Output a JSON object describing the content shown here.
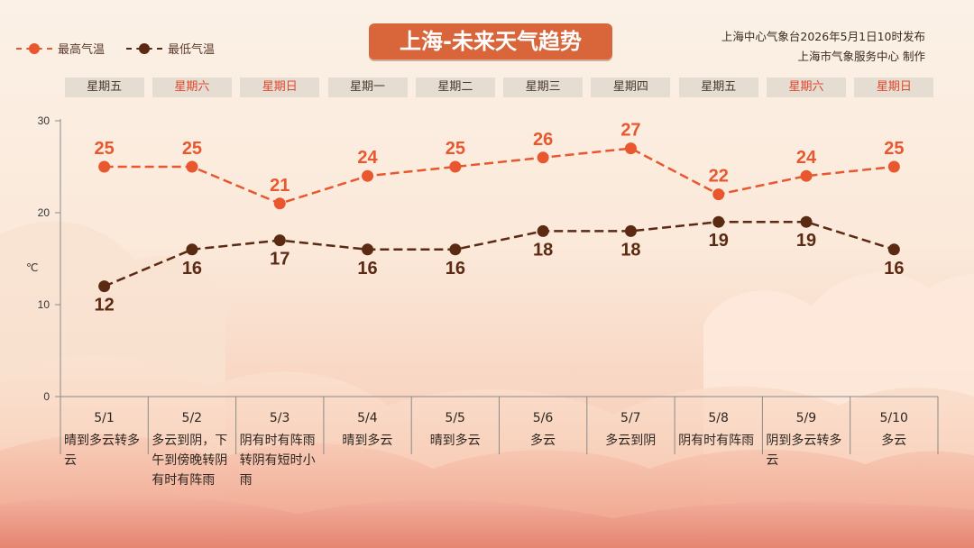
{
  "title": "上海-未来天气趋势",
  "issuer": {
    "line1": "上海中心气象台2026年5月1日10时发布",
    "line2": "上海市气象服务中心 制作"
  },
  "legend": [
    {
      "label": "最高气温",
      "color": "#e8572e"
    },
    {
      "label": "最低气温",
      "color": "#5b2a12"
    }
  ],
  "weekdays": [
    {
      "label": "星期五",
      "weekend": false
    },
    {
      "label": "星期六",
      "weekend": true
    },
    {
      "label": "星期日",
      "weekend": true
    },
    {
      "label": "星期一",
      "weekend": false
    },
    {
      "label": "星期二",
      "weekend": false
    },
    {
      "label": "星期三",
      "weekend": false
    },
    {
      "label": "星期四",
      "weekend": false
    },
    {
      "label": "星期五",
      "weekend": false
    },
    {
      "label": "星期六",
      "weekend": true
    },
    {
      "label": "星期日",
      "weekend": true
    }
  ],
  "days": [
    {
      "date": "5/1",
      "weather": "晴到多云转多云",
      "align": "left"
    },
    {
      "date": "5/2",
      "weather": "多云到阴，下午到傍晚转阴有时有阵雨",
      "align": "left"
    },
    {
      "date": "5/3",
      "weather": "阴有时有阵雨转阴有短时小雨",
      "align": "left"
    },
    {
      "date": "5/4",
      "weather": "晴到多云",
      "align": "center"
    },
    {
      "date": "5/5",
      "weather": "晴到多云",
      "align": "center"
    },
    {
      "date": "5/6",
      "weather": "多云",
      "align": "center"
    },
    {
      "date": "5/7",
      "weather": "多云到阴",
      "align": "center"
    },
    {
      "date": "5/8",
      "weather": "阴有时有阵雨",
      "align": "left"
    },
    {
      "date": "5/9",
      "weather": "阴到多云转多云",
      "align": "left"
    },
    {
      "date": "5/10",
      "weather": "多云",
      "align": "center"
    }
  ],
  "chart_data": {
    "type": "line",
    "title": "上海-未来天气趋势",
    "ylabel": "℃",
    "ylim": [
      0,
      30
    ],
    "yticks": [
      0,
      10,
      20,
      30
    ],
    "categories": [
      "5/1",
      "5/2",
      "5/3",
      "5/4",
      "5/5",
      "5/6",
      "5/7",
      "5/8",
      "5/9",
      "5/10"
    ],
    "series": [
      {
        "name": "最高气温",
        "color": "#e8572e",
        "values": [
          25,
          25,
          21,
          24,
          25,
          26,
          27,
          22,
          24,
          25
        ]
      },
      {
        "name": "最低气温",
        "color": "#5b2a12",
        "values": [
          12,
          16,
          17,
          16,
          16,
          18,
          18,
          19,
          19,
          16
        ]
      }
    ],
    "grid": false,
    "legend": "top-left"
  }
}
